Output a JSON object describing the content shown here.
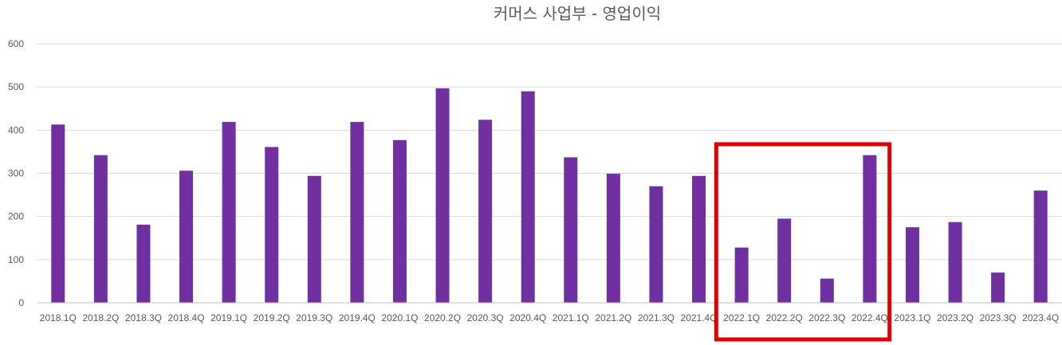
{
  "chart_data": {
    "type": "bar",
    "title": "커머스 사업부 - 영업이익",
    "xlabel": "",
    "ylabel": "",
    "ylim": [
      0,
      600
    ],
    "yticks": [
      0,
      100,
      200,
      300,
      400,
      500,
      600
    ],
    "grid": true,
    "legend": "none",
    "categories": [
      "2018.1Q",
      "2018.2Q",
      "2018.3Q",
      "2018.4Q",
      "2019.1Q",
      "2019.2Q",
      "2019.3Q",
      "2019.4Q",
      "2020.1Q",
      "2020.2Q",
      "2020.3Q",
      "2020.4Q",
      "2021.1Q",
      "2021.2Q",
      "2021.3Q",
      "2021.4Q",
      "2022.1Q",
      "2022.2Q",
      "2022.3Q",
      "2022.4Q",
      "2023.1Q",
      "2023.2Q",
      "2023.3Q",
      "2023.4Q"
    ],
    "values": [
      413,
      342,
      181,
      306,
      419,
      361,
      294,
      419,
      377,
      497,
      424,
      490,
      337,
      299,
      270,
      294,
      128,
      195,
      56,
      342,
      175,
      187,
      70,
      260
    ],
    "highlighted_categories": [
      "2022.1Q",
      "2022.2Q",
      "2022.3Q",
      "2022.4Q"
    ],
    "colors": {
      "bar": "#7030a0",
      "highlight": "#e00000",
      "grid": "#d9d9d9",
      "text": "#595959"
    }
  }
}
